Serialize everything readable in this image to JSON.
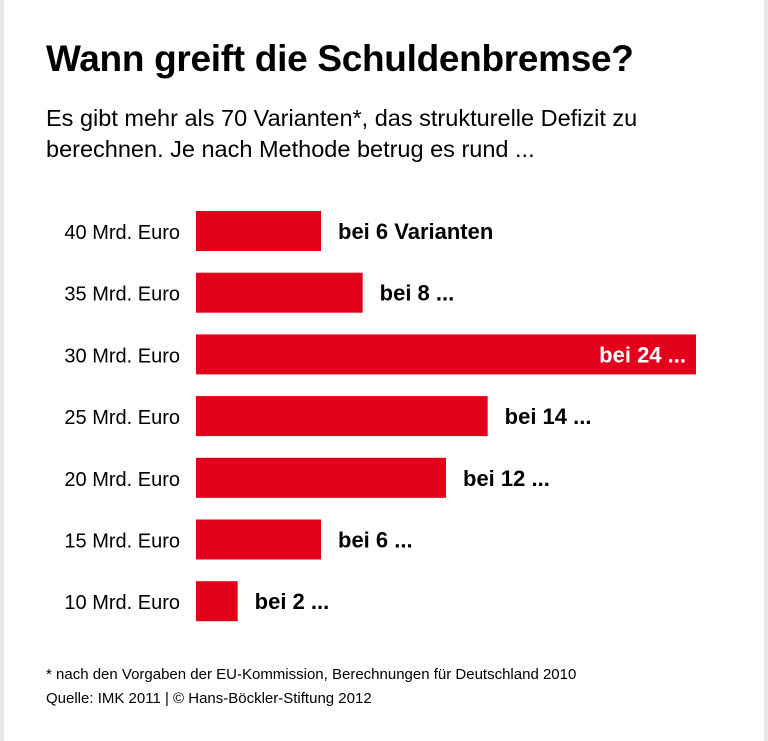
{
  "title": "Wann greift die Schuldenbremse?",
  "subtitle": "Es gibt mehr als 70 Varianten*, das strukturelle Defizit zu berechnen. Je nach Methode betrug es rund ...",
  "footnote": "* nach den Vorgaben der EU-Kommission, Berechnungen für Deutschland 2010",
  "source": "Quelle: IMK 2011 | © Hans-Böckler-Stiftung 2012",
  "colors": {
    "bar": "#e2001a",
    "label_inside": "#ffffff",
    "text": "#000000"
  },
  "chart_data": {
    "type": "bar",
    "orientation": "horizontal",
    "categories": [
      "40 Mrd. Euro",
      "35 Mrd. Euro",
      "30 Mrd. Euro",
      "25 Mrd. Euro",
      "20 Mrd. Euro",
      "15 Mrd. Euro",
      "10 Mrd. Euro"
    ],
    "values": [
      6,
      8,
      24,
      14,
      12,
      6,
      2
    ],
    "data_labels": [
      "bei 6 Varianten",
      "bei 8 ...",
      "bei 24 ...",
      "bei 14 ...",
      "bei 12 ...",
      "bei 6 ...",
      "bei 2 ..."
    ],
    "xlabel": "",
    "ylabel": "",
    "xlim": [
      0,
      24
    ],
    "grid": false,
    "legend": "none"
  }
}
